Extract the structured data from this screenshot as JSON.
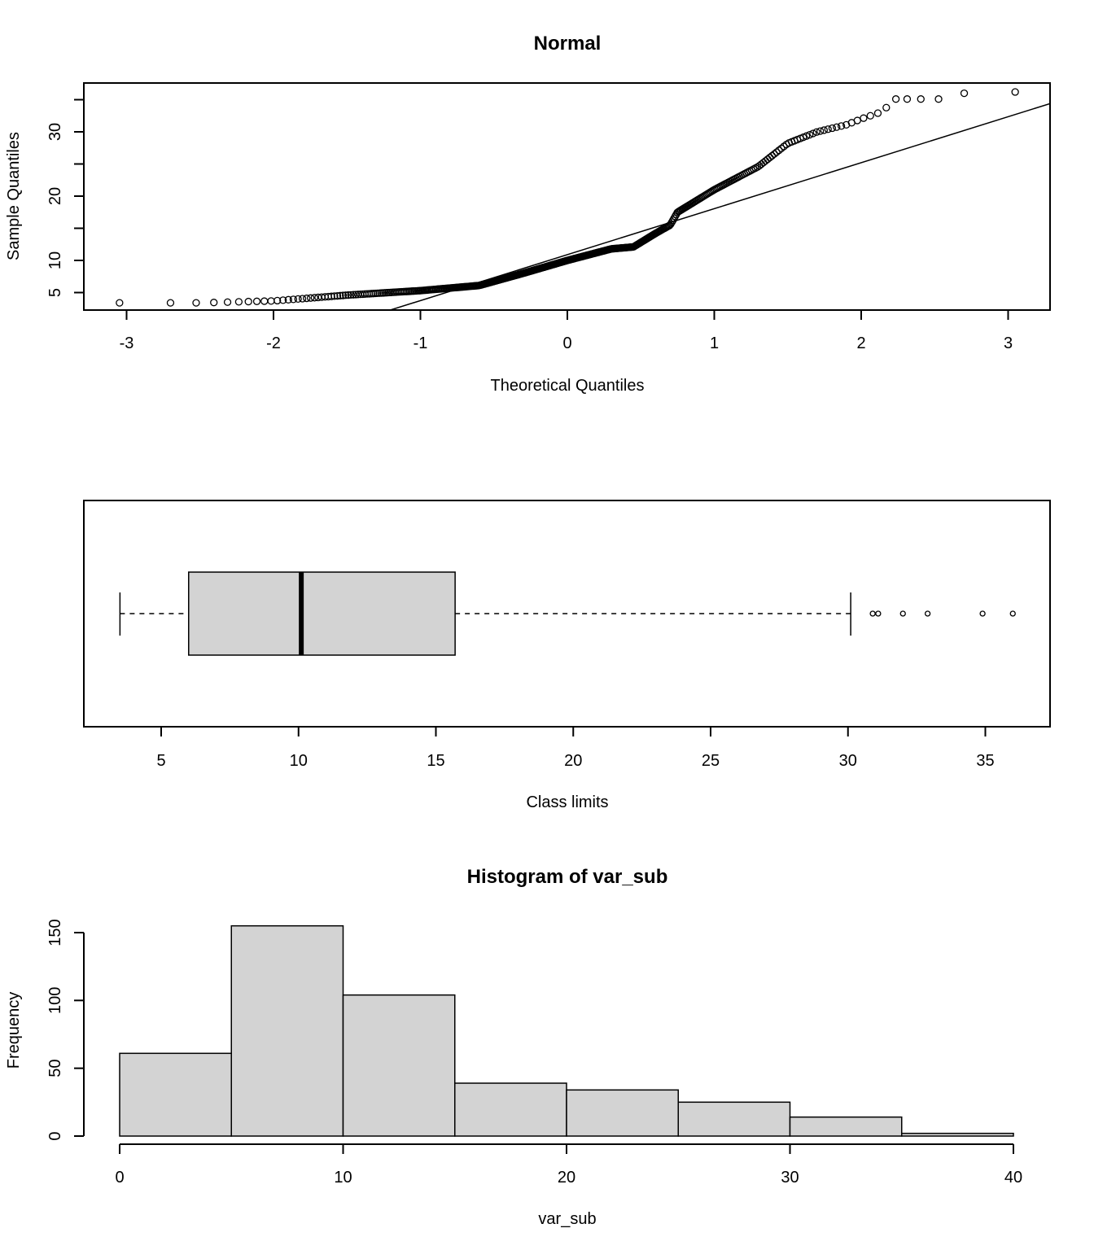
{
  "chart_data": [
    {
      "type": "scatter",
      "subtype": "qq-normal",
      "title": "Normal",
      "xlabel": "Theoretical Quantiles",
      "ylabel": "Sample Quantiles",
      "xlim": [
        -3.3,
        3.3
      ],
      "ylim": [
        2.3,
        37.6
      ],
      "xticks": [
        -3,
        -2,
        -1,
        0,
        1,
        2,
        3
      ],
      "xtick_labels": [
        "-3",
        "-2",
        "-1",
        "0",
        "1",
        "2",
        "3"
      ],
      "yticks": [
        5,
        10,
        15,
        20,
        25,
        30,
        35
      ],
      "ytick_labels": [
        "5",
        "10",
        "",
        "20",
        "",
        "30",
        ""
      ],
      "n": 434,
      "sample_curve_knots": [
        [
          -3.05,
          3.4
        ],
        [
          -2.5,
          3.4
        ],
        [
          -2.0,
          3.7
        ],
        [
          -1.5,
          4.6
        ],
        [
          -1.0,
          5.3
        ],
        [
          -0.6,
          6.1
        ],
        [
          -0.3,
          8.0
        ],
        [
          0.0,
          10.0
        ],
        [
          0.3,
          11.8
        ],
        [
          0.45,
          12.1
        ],
        [
          0.6,
          14.2
        ],
        [
          0.7,
          15.5
        ],
        [
          0.75,
          17.5
        ],
        [
          1.0,
          21.0
        ],
        [
          1.3,
          24.6
        ],
        [
          1.5,
          28.2
        ],
        [
          1.7,
          30.0
        ],
        [
          1.9,
          31.1
        ],
        [
          2.0,
          32.0
        ],
        [
          2.15,
          33.2
        ],
        [
          2.22,
          35.1
        ],
        [
          2.55,
          35.1
        ],
        [
          2.7,
          36.0
        ],
        [
          3.05,
          36.2
        ]
      ],
      "qqline": {
        "intercept": 10.9,
        "slope": 7.15
      }
    },
    {
      "type": "boxplot",
      "orientation": "horizontal",
      "xlabel": "Class limits",
      "xlim": [
        0.7,
        36.8
      ],
      "xticks": [
        5,
        10,
        15,
        20,
        25,
        30,
        35
      ],
      "xtick_labels": [
        "5",
        "10",
        "15",
        "20",
        "25",
        "30",
        "35"
      ],
      "whisker_low": 3.5,
      "q1": 6.0,
      "median": 10.1,
      "q3": 15.7,
      "whisker_high": 30.1,
      "outliers": [
        30.9,
        31.1,
        32.0,
        32.9,
        34.9,
        36.0
      ],
      "fill": "#d3d3d3"
    },
    {
      "type": "bar",
      "subtype": "histogram",
      "title": "Histogram of var_sub",
      "xlabel": "var_sub",
      "ylabel": "Frequency",
      "bins": [
        [
          0,
          5
        ],
        [
          5,
          10
        ],
        [
          10,
          15
        ],
        [
          15,
          20
        ],
        [
          20,
          25
        ],
        [
          25,
          30
        ],
        [
          30,
          35
        ],
        [
          35,
          40
        ]
      ],
      "values": [
        61,
        155,
        104,
        39,
        34,
        25,
        14,
        2
      ],
      "xlim": [
        0,
        40
      ],
      "ylim": [
        0,
        150
      ],
      "xticks": [
        0,
        10,
        20,
        30,
        40
      ],
      "xtick_labels": [
        "0",
        "10",
        "20",
        "30",
        "40"
      ],
      "yticks": [
        0,
        50,
        100,
        150
      ],
      "ytick_labels": [
        "0",
        "50",
        "100",
        "150"
      ],
      "fill": "#d3d3d3"
    }
  ]
}
